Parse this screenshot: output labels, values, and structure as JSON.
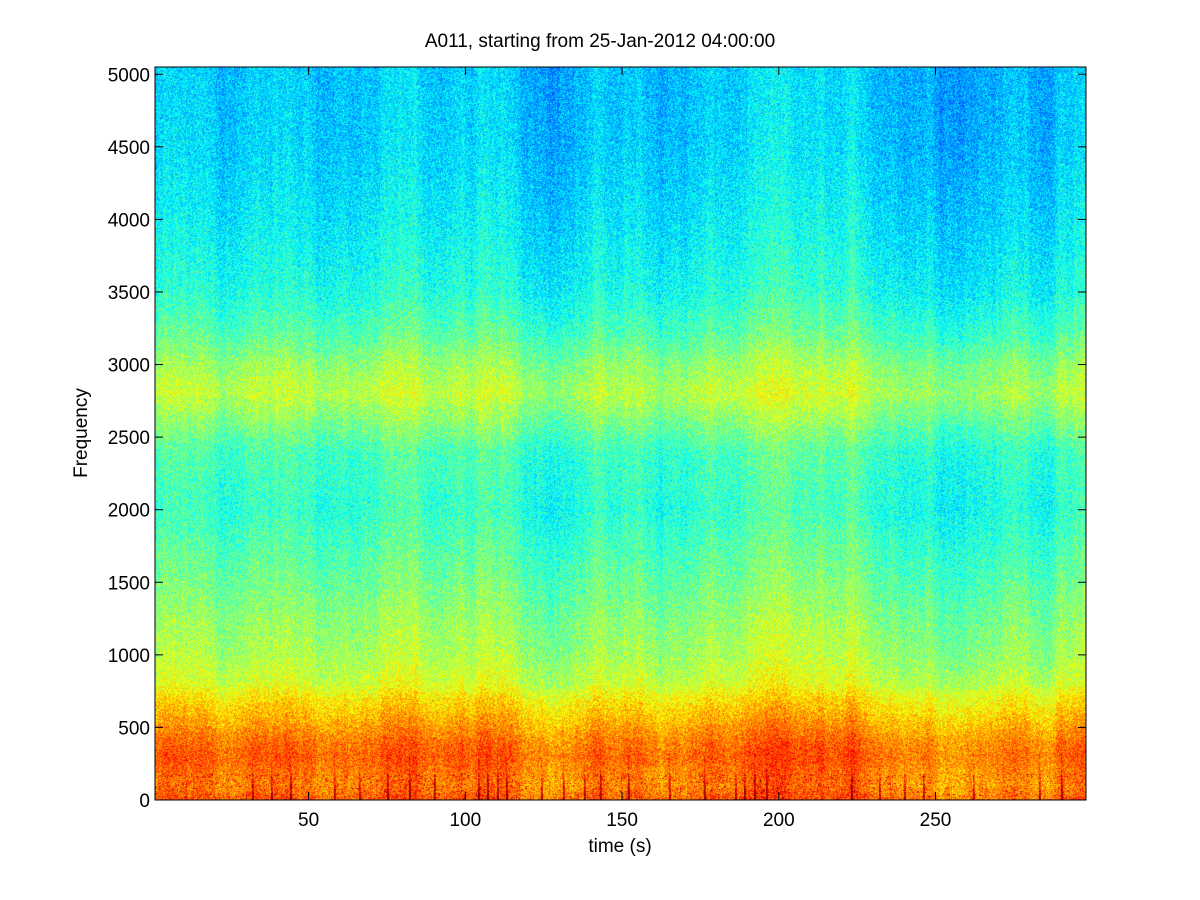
{
  "chart_data": {
    "type": "heatmap",
    "title": "A011, starting from 25-Jan-2012 04:00:00",
    "xlabel": "time (s)",
    "ylabel": "Frequency",
    "xlim": [
      1,
      298
    ],
    "ylim": [
      0,
      5050
    ],
    "x_ticks": [
      50,
      100,
      150,
      200,
      250
    ],
    "y_ticks": [
      0,
      500,
      1000,
      1500,
      2000,
      2500,
      3000,
      3500,
      4000,
      4500,
      5000
    ],
    "colormap": "jet",
    "grid": false,
    "intensity_profile": {
      "frequency": [
        0,
        100,
        200,
        300,
        400,
        500,
        600,
        700,
        800,
        1000,
        1200,
        1500,
        2000,
        2400,
        2600,
        2800,
        3000,
        3200,
        3500,
        4000,
        4500,
        5050
      ],
      "level": [
        0.78,
        0.74,
        0.76,
        0.78,
        0.76,
        0.72,
        0.68,
        0.64,
        0.58,
        0.54,
        0.52,
        0.48,
        0.42,
        0.44,
        0.5,
        0.56,
        0.52,
        0.46,
        0.4,
        0.36,
        0.33,
        0.32
      ]
    },
    "transient_times": [
      32,
      38,
      44,
      58,
      66,
      75,
      82,
      90,
      104,
      107,
      110,
      113,
      124,
      131,
      138,
      143,
      152,
      165,
      176,
      186,
      189,
      192,
      196,
      223,
      232,
      240,
      246,
      262,
      283,
      290
    ],
    "colors": {
      "background": "#ffffff",
      "axis": "#000000"
    }
  }
}
